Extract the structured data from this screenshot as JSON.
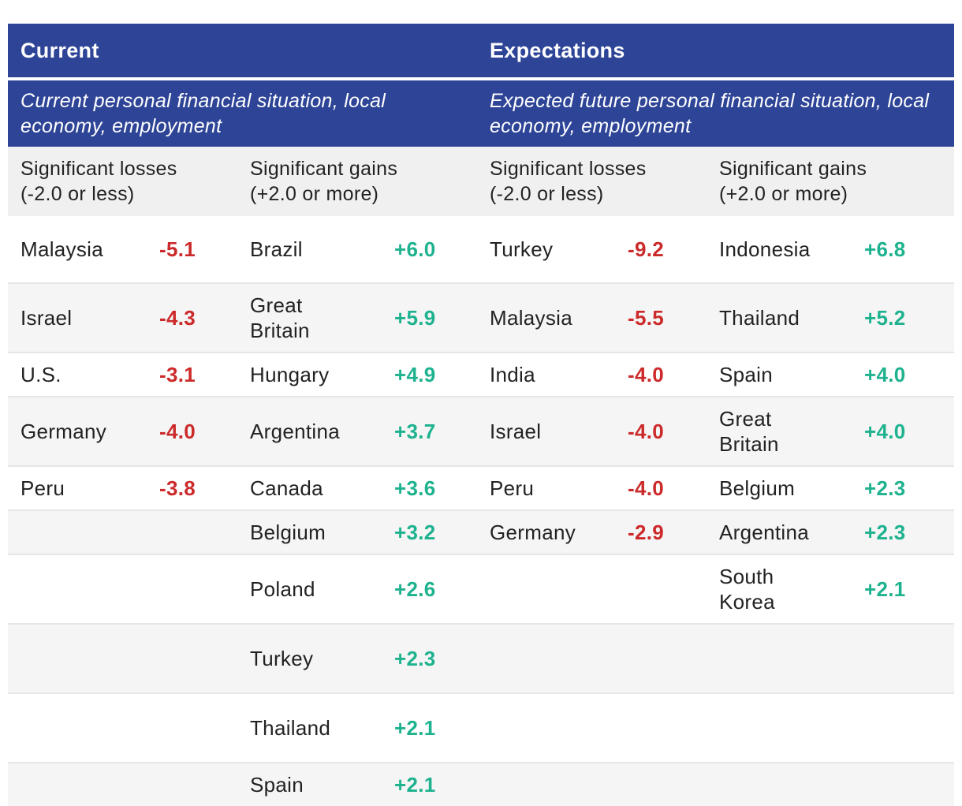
{
  "header": {
    "current": "Current",
    "expectations": "Expectations"
  },
  "subheader": {
    "current": "Current personal financial situation, local economy, employment",
    "expectations": "Expected future personal financial situation, local economy, employment"
  },
  "column_headers": {
    "current_losses": "Significant losses\n(-2.0 or less)",
    "current_gains": "Significant gains\n(+2.0 or more)",
    "expect_losses": "Significant losses\n(-2.0 or less)",
    "expect_gains": "Significant gains\n(+2.0 or more)"
  },
  "colors": {
    "header_bg": "#2e4497",
    "loss": "#cc2a2a",
    "gain": "#1fb28f"
  },
  "rows": [
    {
      "cl_country": "Malaysia",
      "cl_value": "-5.1",
      "cg_country": "Brazil",
      "cg_value": "+6.0",
      "el_country": "Turkey",
      "el_value": "-9.2",
      "eg_country": "Indonesia",
      "eg_value": "+6.8"
    },
    {
      "cl_country": "Israel",
      "cl_value": "-4.3",
      "cg_country": "Great\nBritain",
      "cg_value": "+5.9",
      "el_country": "Malaysia",
      "el_value": "-5.5",
      "eg_country": "Thailand",
      "eg_value": "+5.2"
    },
    {
      "cl_country": "U.S.",
      "cl_value": "-3.1",
      "cg_country": "Hungary",
      "cg_value": "+4.9",
      "el_country": "India",
      "el_value": "-4.0",
      "eg_country": "Spain",
      "eg_value": "+4.0"
    },
    {
      "cl_country": "Germany",
      "cl_value": "-4.0",
      "cg_country": "Argentina",
      "cg_value": "+3.7",
      "el_country": "Israel",
      "el_value": "-4.0",
      "eg_country": "Great\nBritain",
      "eg_value": "+4.0"
    },
    {
      "cl_country": "Peru",
      "cl_value": "-3.8",
      "cg_country": "Canada",
      "cg_value": "+3.6",
      "el_country": "Peru",
      "el_value": "-4.0",
      "eg_country": "Belgium",
      "eg_value": "+2.3"
    },
    {
      "cl_country": "",
      "cl_value": "",
      "cg_country": "Belgium",
      "cg_value": "+3.2",
      "el_country": "Germany",
      "el_value": "-2.9",
      "eg_country": "Argentina",
      "eg_value": "+2.3"
    },
    {
      "cl_country": "",
      "cl_value": "",
      "cg_country": "Poland",
      "cg_value": "+2.6",
      "el_country": "",
      "el_value": "",
      "eg_country": "South\nKorea",
      "eg_value": "+2.1"
    },
    {
      "cl_country": "",
      "cl_value": "",
      "cg_country": "Turkey",
      "cg_value": "+2.3",
      "el_country": "",
      "el_value": "",
      "eg_country": "",
      "eg_value": ""
    },
    {
      "cl_country": "",
      "cl_value": "",
      "cg_country": "Thailand",
      "cg_value": "+2.1",
      "el_country": "",
      "el_value": "",
      "eg_country": "",
      "eg_value": ""
    },
    {
      "cl_country": "",
      "cl_value": "",
      "cg_country": "Spain",
      "cg_value": "+2.1",
      "el_country": "",
      "el_value": "",
      "eg_country": "",
      "eg_value": ""
    }
  ]
}
